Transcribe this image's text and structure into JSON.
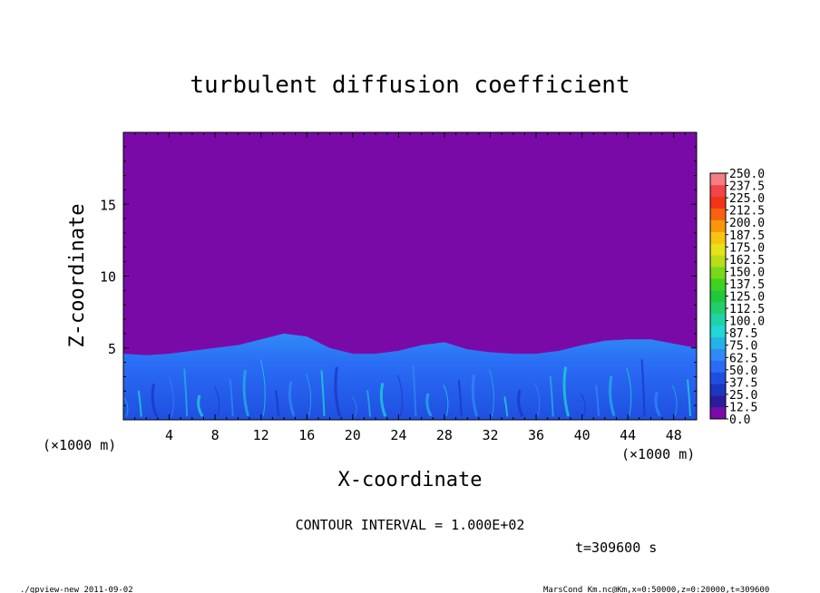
{
  "chart_data": {
    "type": "heatmap",
    "title": "turbulent diffusion coefficient",
    "xlabel": "X-coordinate",
    "ylabel": "Z-coordinate",
    "x_unit": "(×1000 m)",
    "xlim": [
      0,
      50
    ],
    "ylim": [
      0,
      20
    ],
    "x_ticks": [
      4,
      8,
      12,
      16,
      20,
      24,
      28,
      32,
      36,
      40,
      44,
      48
    ],
    "y_ticks": [
      5,
      10,
      15
    ],
    "colorbar": {
      "levels": [
        "0.0",
        "12.5",
        "25.0",
        "37.5",
        "50.0",
        "62.5",
        "75.0",
        "87.5",
        "100.0",
        "112.5",
        "125.0",
        "137.5",
        "150.0",
        "162.5",
        "175.0",
        "187.5",
        "200.0",
        "212.5",
        "225.0",
        "237.5",
        "250.0"
      ],
      "colors": [
        "#7a0aa8",
        "#2a1c9c",
        "#1c36c0",
        "#1f4fe0",
        "#2a6cf5",
        "#2f8af5",
        "#25b2e6",
        "#20d6d6",
        "#20d3a6",
        "#1fcf6c",
        "#1ec93c",
        "#3fd21f",
        "#78d81a",
        "#b7de16",
        "#e7e215",
        "#f7c410",
        "#fb950d",
        "#f8620f",
        "#f33318",
        "#f04646",
        "#f47e84"
      ]
    },
    "boundary_layer_top_km": [
      [
        0,
        4.6
      ],
      [
        2,
        4.5
      ],
      [
        4,
        4.6
      ],
      [
        6,
        4.8
      ],
      [
        8,
        5.0
      ],
      [
        10,
        5.2
      ],
      [
        12,
        5.6
      ],
      [
        14,
        6.0
      ],
      [
        16,
        5.8
      ],
      [
        18,
        5.0
      ],
      [
        20,
        4.6
      ],
      [
        22,
        4.6
      ],
      [
        24,
        4.8
      ],
      [
        26,
        5.2
      ],
      [
        28,
        5.4
      ],
      [
        30,
        4.9
      ],
      [
        32,
        4.7
      ],
      [
        34,
        4.6
      ],
      [
        36,
        4.6
      ],
      [
        38,
        4.8
      ],
      [
        40,
        5.2
      ],
      [
        42,
        5.5
      ],
      [
        44,
        5.6
      ],
      [
        46,
        5.6
      ],
      [
        48,
        5.3
      ],
      [
        50,
        5.0
      ]
    ],
    "annotations": {
      "contour_interval": "CONTOUR INTERVAL = 1.000E+02",
      "time": "t=309600 s",
      "footer_left": "./gpview-new   2011-09-02",
      "footer_right": "MarsCond_Km.nc@Km,x=0:50000,z=0:20000,t=309600"
    }
  }
}
